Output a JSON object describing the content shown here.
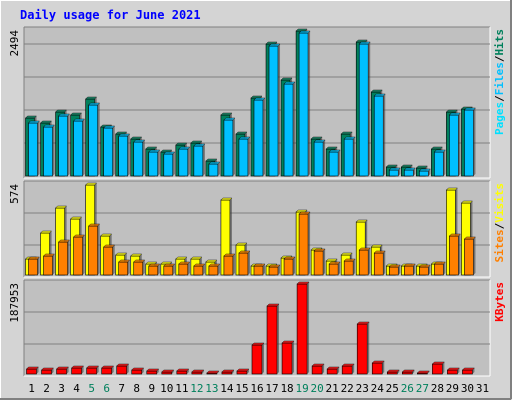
{
  "chart_data": {
    "type": "bar",
    "title": "Daily usage for June 2021",
    "categories": [
      "1",
      "2",
      "3",
      "4",
      "5",
      "6",
      "7",
      "8",
      "9",
      "10",
      "11",
      "12",
      "13",
      "14",
      "15",
      "16",
      "17",
      "18",
      "19",
      "20",
      "21",
      "22",
      "23",
      "24",
      "25",
      "26",
      "27",
      "28",
      "29",
      "30",
      "31"
    ],
    "weekend_categories": [
      "5",
      "6",
      "12",
      "13",
      "19",
      "20",
      "26",
      "27"
    ],
    "panels": [
      {
        "id": "top",
        "max_label": "2494",
        "ylim": [
          0,
          2494
        ],
        "side_label": [
          "Pages",
          "/",
          "Files",
          "/",
          "Hits"
        ],
        "series": [
          {
            "name": "Hits",
            "values": [
              1000,
              920,
              1100,
              1050,
              1320,
              850,
              730,
              630,
              460,
              420,
              540,
              560,
              250,
              1050,
              730,
              1350,
              2270,
              1650,
              2494,
              640,
              470,
              720,
              2300,
              1450,
              150,
              150,
              130,
              470,
              1100,
              1150,
              0
            ]
          },
          {
            "name": "Files",
            "values": [
              920,
              840,
              1040,
              950,
              1220,
              820,
              680,
              580,
              420,
              370,
              470,
              510,
              210,
              960,
              630,
              1300,
              2230,
              1580,
              2460,
              580,
              420,
              640,
              2270,
              1380,
              110,
              110,
              90,
              420,
              1050,
              1130,
              0
            ]
          },
          {
            "name": "Pages",
            "values": [
              0,
              0,
              0,
              0,
              0,
              0,
              0,
              0,
              0,
              0,
              0,
              0,
              0,
              0,
              0,
              0,
              0,
              0,
              0,
              0,
              0,
              0,
              0,
              0,
              0,
              0,
              0,
              0,
              0,
              0,
              0
            ]
          }
        ]
      },
      {
        "id": "mid",
        "max_label": "574",
        "ylim": [
          0,
          574
        ],
        "side_label": [
          "Sites",
          "/",
          "Visits"
        ],
        "series": [
          {
            "name": "Visits",
            "values": [
              100,
              270,
              430,
              360,
              574,
              250,
              130,
              120,
              70,
              70,
              100,
              100,
              80,
              480,
              190,
              60,
              60,
              110,
              400,
              160,
              90,
              130,
              340,
              180,
              60,
              60,
              60,
              70,
              540,
              460,
              0
            ]
          },
          {
            "name": "Sites",
            "values": [
              100,
              120,
              210,
              240,
              310,
              180,
              80,
              80,
              60,
              60,
              70,
              60,
              60,
              120,
              140,
              60,
              50,
              100,
              390,
              150,
              70,
              90,
              160,
              140,
              50,
              60,
              50,
              70,
              250,
              230,
              0
            ]
          }
        ]
      },
      {
        "id": "bot",
        "max_label": "187953",
        "ylim": [
          0,
          187953
        ],
        "side_label": [
          "KBytes"
        ],
        "series": [
          {
            "name": "KBytes",
            "values": [
              10000,
              9000,
              10000,
              13000,
              12000,
              13000,
              17000,
              9000,
              6000,
              5000,
              6000,
              5000,
              3000,
              5000,
              6000,
              60000,
              143000,
              65000,
              187953,
              16000,
              10000,
              16000,
              105000,
              24000,
              4000,
              4000,
              3000,
              20000,
              8000,
              9000,
              0
            ]
          }
        ]
      }
    ],
    "colors": {
      "hits": "#00805c",
      "files": "#00c0ff",
      "pages": "#00e0ff",
      "visits": "#ffff00",
      "sites": "#ff8000",
      "kbytes": "#ff0000",
      "plot_bg": "#c0c0c0",
      "frame_bg": "#d4d4d4",
      "title": "#0000ff",
      "weekday_label": "#000000",
      "weekend_label": "#00805c"
    },
    "grid": true,
    "legend": "right-side vertical"
  }
}
